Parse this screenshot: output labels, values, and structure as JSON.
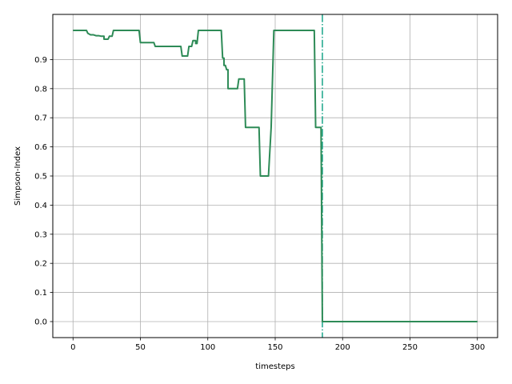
{
  "chart_data": {
    "type": "line",
    "xlabel": "timesteps",
    "ylabel": "Simpson-Index",
    "xlim": [
      -15,
      315
    ],
    "ylim": [
      -0.055,
      1.055
    ],
    "grid": true,
    "x_ticks": [
      0,
      50,
      100,
      150,
      200,
      250,
      300
    ],
    "x_tick_labels": [
      "0",
      "50",
      "100",
      "150",
      "200",
      "250",
      "300"
    ],
    "y_ticks": [
      0.0,
      0.1,
      0.2,
      0.3,
      0.4,
      0.5,
      0.6,
      0.7,
      0.8,
      0.9
    ],
    "y_tick_labels": [
      "0.0",
      "0.1",
      "0.2",
      "0.3",
      "0.4",
      "0.5",
      "0.6",
      "0.7",
      "0.8",
      "0.9"
    ],
    "vline": {
      "x": 185,
      "style": "dash-dot",
      "color": "#17a589"
    },
    "series": [
      {
        "color": "#2e8b57",
        "points": [
          [
            0,
            1.0
          ],
          [
            10,
            1.0
          ],
          [
            11,
            0.99
          ],
          [
            13,
            0.985
          ],
          [
            15,
            0.985
          ],
          [
            17,
            0.982
          ],
          [
            19,
            0.982
          ],
          [
            21,
            0.98
          ],
          [
            23,
            0.98
          ],
          [
            23,
            0.97
          ],
          [
            26,
            0.97
          ],
          [
            27,
            0.98
          ],
          [
            29,
            0.98
          ],
          [
            30,
            1.0
          ],
          [
            49,
            1.0
          ],
          [
            50,
            0.958
          ],
          [
            60,
            0.958
          ],
          [
            61,
            0.945
          ],
          [
            80,
            0.945
          ],
          [
            81,
            0.912
          ],
          [
            85,
            0.912
          ],
          [
            86,
            0.945
          ],
          [
            88,
            0.945
          ],
          [
            89,
            0.965
          ],
          [
            91,
            0.965
          ],
          [
            91,
            0.955
          ],
          [
            92,
            0.955
          ],
          [
            93,
            1.0
          ],
          [
            110,
            1.0
          ],
          [
            111,
            0.905
          ],
          [
            112,
            0.905
          ],
          [
            112,
            0.88
          ],
          [
            113,
            0.88
          ],
          [
            114,
            0.865
          ],
          [
            115,
            0.865
          ],
          [
            115,
            0.8
          ],
          [
            122,
            0.8
          ],
          [
            123,
            0.833
          ],
          [
            127,
            0.833
          ],
          [
            128,
            0.667
          ],
          [
            138,
            0.667
          ],
          [
            139,
            0.5
          ],
          [
            145,
            0.5
          ],
          [
            147,
            0.667
          ],
          [
            149,
            1.0
          ],
          [
            179,
            1.0
          ],
          [
            180,
            0.667
          ],
          [
            184,
            0.667
          ],
          [
            185,
            0.0
          ],
          [
            300,
            0.0
          ]
        ]
      }
    ]
  }
}
